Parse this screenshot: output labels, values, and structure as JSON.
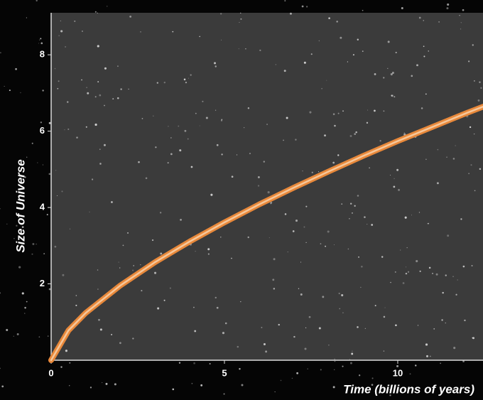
{
  "chart_data": {
    "type": "line",
    "x_label": "Time (billions of years)",
    "y_label": "Size of Universe",
    "x": [
      0,
      0.5,
      1,
      2,
      3,
      4,
      5,
      6,
      7,
      8,
      9,
      10,
      11,
      12,
      12.46
    ],
    "series": [
      {
        "color": "#e8883a",
        "values": [
          0,
          0.78,
          1.24,
          1.96,
          2.57,
          3.11,
          3.61,
          4.08,
          4.52,
          4.94,
          5.35,
          5.74,
          6.11,
          6.48,
          6.64
        ]
      }
    ],
    "xlim": [
      0,
      12.46
    ],
    "ylim": [
      0,
      9.1
    ],
    "xticks": [
      0,
      5,
      10
    ],
    "yticks": [
      2,
      4,
      6,
      8
    ]
  }
}
